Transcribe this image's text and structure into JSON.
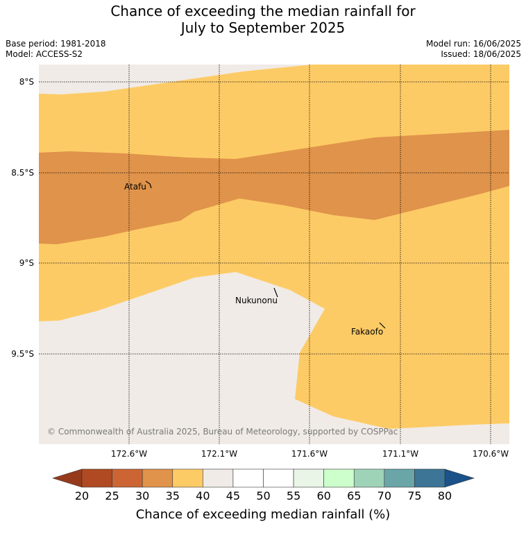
{
  "title_line1": "Chance of exceeding the median rainfall for",
  "title_line2": "July to September 2025",
  "meta_left": {
    "base_period": "Base period: 1981-2018",
    "model": "Model: ACCESS-S2"
  },
  "meta_right": {
    "model_run": "Model run: 16/06/2025",
    "issued": "Issued: 18/06/2025"
  },
  "map": {
    "latitude_labels": [
      "8°S",
      "8.5°S",
      "9°S",
      "9.5°S"
    ],
    "longitude_labels": [
      "172.6°W",
      "172.1°W",
      "171.6°W",
      "171.1°W",
      "170.6°W"
    ],
    "places": [
      "Atafu",
      "Nukunonu",
      "Fakaofo"
    ],
    "copyright": "© Commonwealth of Australia 2025, Bureau of Meteorology, supported by COSPPac",
    "land_color": "#f0ebe6",
    "band_30_35_color": "#e0934a",
    "band_35_40_color": "#fdcb66"
  },
  "colorbar": {
    "ticks": [
      "20",
      "25",
      "30",
      "35",
      "40",
      "45",
      "50",
      "55",
      "60",
      "65",
      "70",
      "75",
      "80"
    ],
    "colors": [
      "#b04a22",
      "#cc6533",
      "#e0934a",
      "#fdcb66",
      "#f0ebe6",
      "#ffffff",
      "#ffffff",
      "#e9f5e7",
      "#ccffcc",
      "#9ed3b8",
      "#6aa5a8",
      "#3c7596"
    ],
    "under_color": "#963a1c",
    "over_color": "#1a5289",
    "title": "Chance of exceeding median rainfall (%)"
  }
}
